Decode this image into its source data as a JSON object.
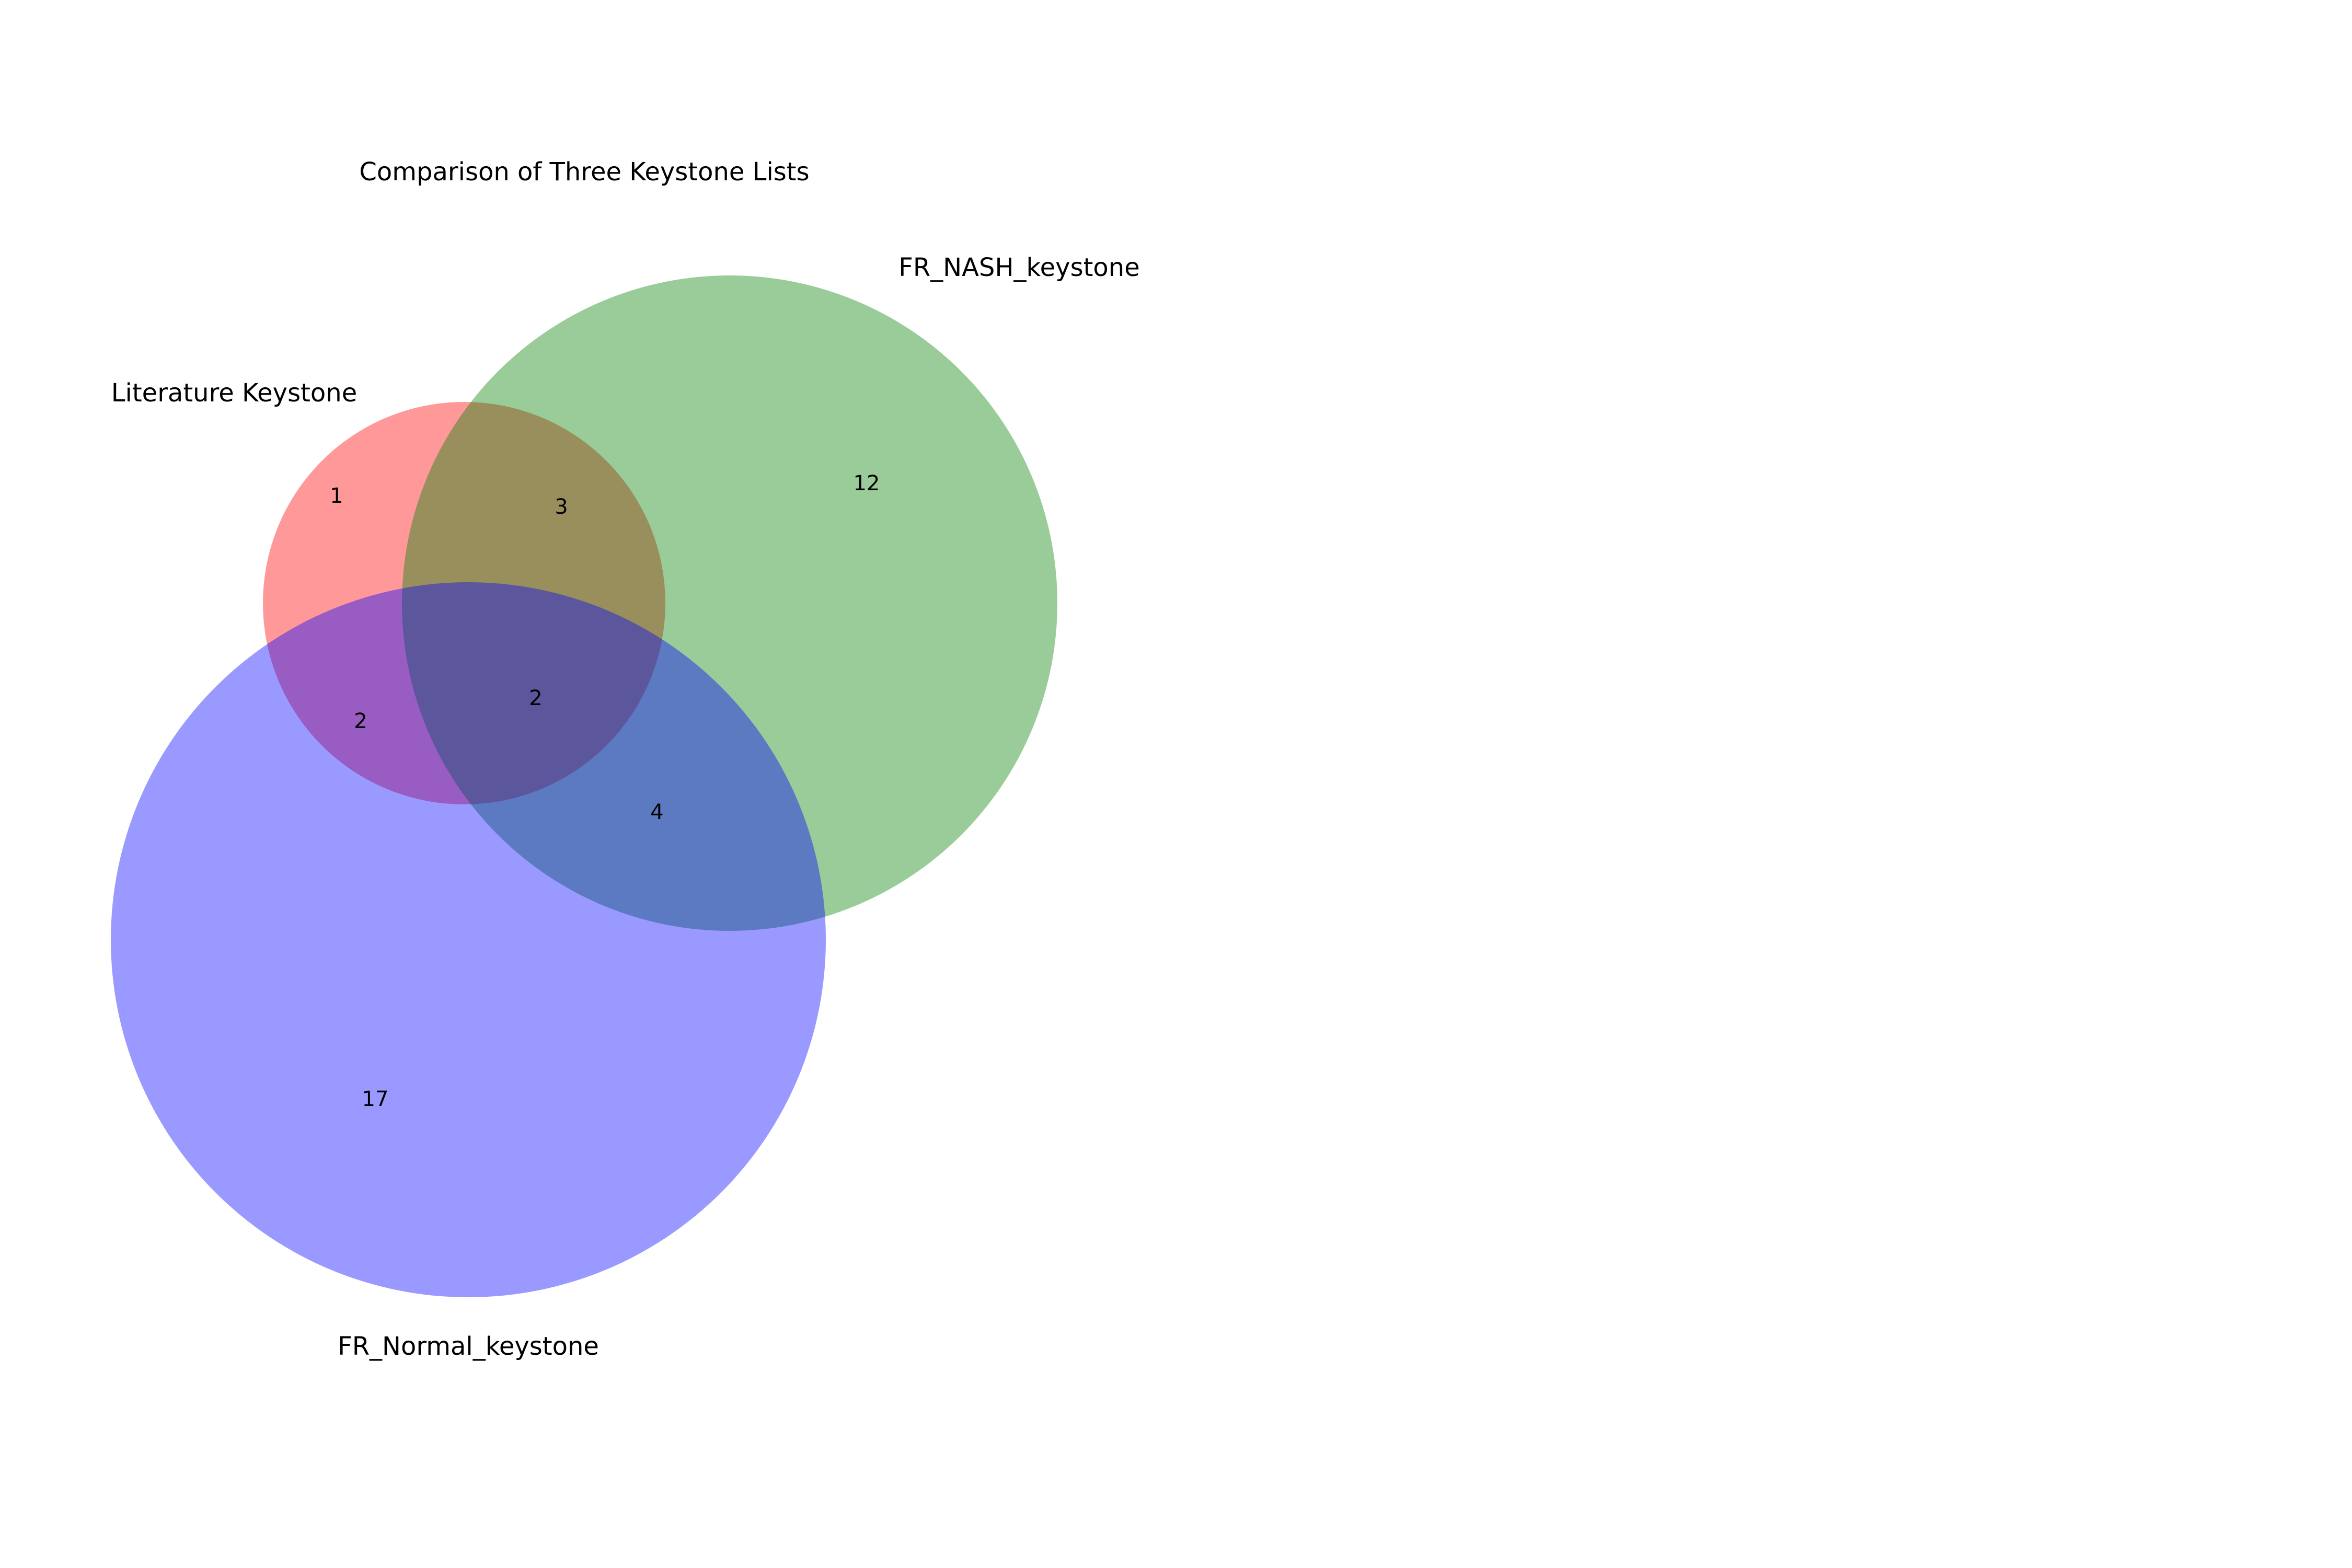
{
  "title": "Comparison of Three Keystone Lists",
  "sets": [
    {
      "key": "lit",
      "label": "Literature Keystone",
      "color": "#ff0000"
    },
    {
      "key": "nash",
      "label": "FR_NASH_keystone",
      "color": "#008000"
    },
    {
      "key": "normal",
      "label": "FR_Normal_keystone",
      "color": "#0000ff"
    }
  ],
  "fill_opacity": 0.4,
  "regions": {
    "lit_only": "1",
    "nash_only": "12",
    "normal_only": "17",
    "lit_nash": "3",
    "lit_normal": "2",
    "nash_normal": "4",
    "all_three": "2"
  }
}
